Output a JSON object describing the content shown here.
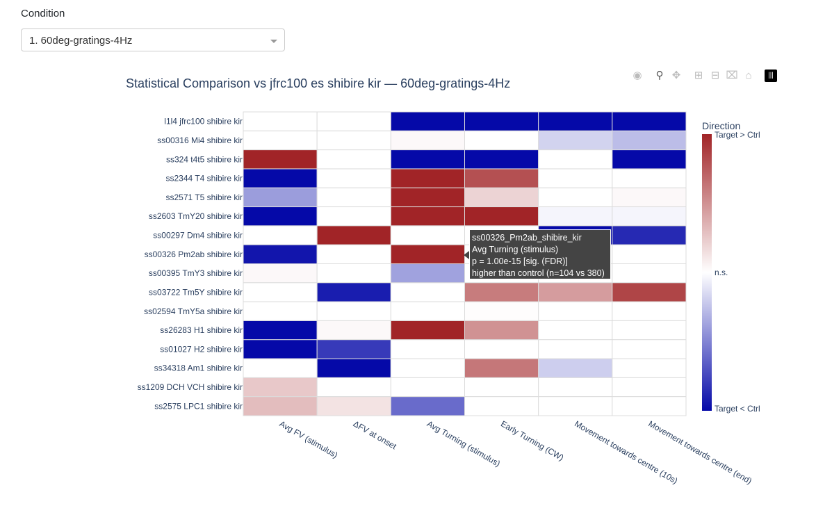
{
  "condition": {
    "label": "Condition",
    "selected": "1. 60deg-gratings-4Hz"
  },
  "modebar": [
    "camera-icon",
    "zoom-icon",
    "pan-icon",
    "zoom-in-icon",
    "zoom-out-icon",
    "autoscale-icon",
    "home-icon",
    "plotly-logo-icon"
  ],
  "chart_data": {
    "type": "heatmap",
    "title": "Statistical Comparison vs jfrc100 es shibire kir — 60deg-gratings-4Hz",
    "x": [
      "Avg FV (stimulus)",
      "ΔFV at onset",
      "Avg Turning (stimulus)",
      "Early Turning (CW)",
      "Movement towards centre (10s)",
      "Movement towards centre (end)"
    ],
    "y": [
      "l1l4 jfrc100 shibire kir",
      "ss00316 Mi4 shibire kir",
      "ss324 t4t5 shibire kir",
      "ss2344 T4 shibire kir",
      "ss2571 T5 shibire kir",
      "ss2603 TmY20 shibire kir",
      "ss00297 Dm4 shibire kir",
      "ss00326 Pm2ab shibire kir",
      "ss00395 TmY3 shibire kir",
      "ss03722 Tm5Y shibire kir",
      "ss02594 TmY5a shibire kir",
      "ss26283 H1 shibire kir",
      "ss01027 H2 shibire kir",
      "ss34318 Am1 shibire kir",
      "ss1209 DCH VCH shibire kir",
      "ss2575 LPC1 shibire kir"
    ],
    "z": [
      [
        0,
        0,
        -1,
        -1,
        -1,
        -1
      ],
      [
        0,
        0,
        0.03,
        0,
        -0.18,
        -0.27
      ],
      [
        1,
        0,
        -1,
        -1,
        0,
        -1
      ],
      [
        -1,
        0,
        1,
        0.8,
        0,
        0
      ],
      [
        -0.4,
        0,
        1,
        0.2,
        0,
        0.03
      ],
      [
        -1,
        0,
        1,
        1,
        -0.04,
        -0.04
      ],
      [
        0,
        1,
        0,
        0,
        -1,
        -0.87
      ],
      [
        -0.95,
        0,
        1,
        0,
        0,
        0
      ],
      [
        0.03,
        0,
        -0.38,
        0,
        0,
        0
      ],
      [
        0,
        -0.92,
        0,
        0.6,
        0.45,
        0.85
      ],
      [
        0,
        0,
        0,
        0.01,
        0,
        0
      ],
      [
        -1,
        0.03,
        1,
        0.5,
        0,
        0
      ],
      [
        -1,
        -0.8,
        0,
        0,
        0,
        0
      ],
      [
        0,
        -1,
        0,
        0.62,
        -0.2,
        0
      ],
      [
        0.25,
        0,
        0,
        0,
        0,
        0
      ],
      [
        0.3,
        0.13,
        -0.6,
        0,
        0,
        0
      ]
    ],
    "zlim": [
      -1,
      1
    ],
    "colorscale": {
      "low": "#0509a8",
      "mid": "#ffffff",
      "high": "#a12427"
    },
    "colorbar": {
      "title": "Direction",
      "top_label": "Target > Ctrl",
      "mid_label": "n.s.",
      "bottom_label": "Target < Ctrl"
    },
    "hover": {
      "lines": [
        "ss00326_Pm2ab_shibire_kir",
        "Avg Turning (stimulus)",
        "p = 1.00e-15 [sig. (FDR)]",
        "higher than control (n=104 vs 380)"
      ]
    }
  }
}
